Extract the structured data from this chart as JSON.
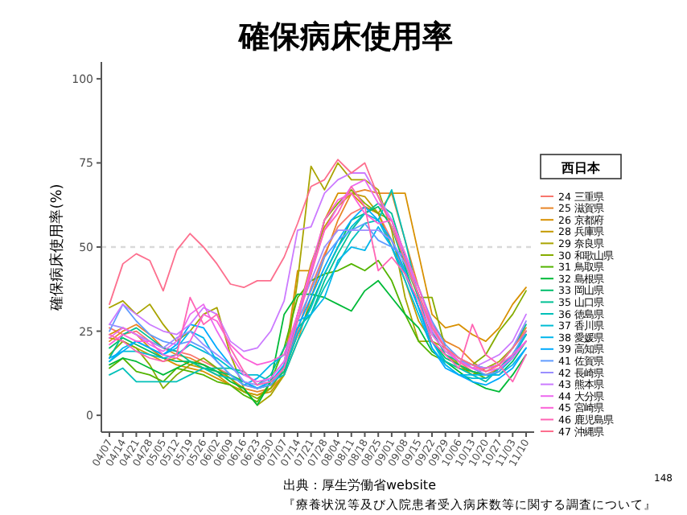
{
  "chart_data": {
    "type": "line",
    "title": "確保病床使用率",
    "ylabel": "確保病床使用率(%)",
    "legend_title": "西日本",
    "legend": "right",
    "grid": false,
    "categories": [
      "04/07",
      "04/14",
      "04/21",
      "04/28",
      "05/05",
      "05/12",
      "05/19",
      "05/26",
      "06/02",
      "06/09",
      "06/16",
      "06/23",
      "06/30",
      "07/07",
      "07/14",
      "07/21",
      "07/28",
      "08/04",
      "08/11",
      "08/18",
      "08/25",
      "09/01",
      "09/08",
      "09/15",
      "09/22",
      "09/29",
      "10/06",
      "10/13",
      "10/20",
      "10/27",
      "11/03",
      "11/10"
    ],
    "ylim": [
      -5,
      105
    ],
    "yticks": [
      0,
      25,
      50,
      75,
      100
    ],
    "ref_lines": [
      {
        "axis": "y",
        "value": 50,
        "color": "#d9d9d9",
        "line_style": "dashed"
      }
    ],
    "series": [
      {
        "name": "24 三重県",
        "color": "#F8766D",
        "values": [
          26,
          24,
          25,
          22,
          20,
          19,
          18,
          16,
          14,
          12,
          9,
          8,
          9,
          14,
          25,
          38,
          48,
          56,
          60,
          62,
          60,
          52,
          42,
          32,
          24,
          19,
          16,
          13,
          12,
          14,
          18,
          24
        ]
      },
      {
        "name": "25 滋賀県",
        "color": "#E88526",
        "values": [
          22,
          25,
          27,
          24,
          20,
          18,
          17,
          15,
          13,
          11,
          8,
          7,
          8,
          12,
          22,
          35,
          47,
          58,
          66,
          67,
          66,
          66,
          52,
          38,
          27,
          22,
          20,
          16,
          13,
          15,
          20,
          26
        ]
      },
      {
        "name": "26 京都府",
        "color": "#D89000",
        "values": [
          24,
          26,
          24,
          20,
          17,
          15,
          14,
          13,
          11,
          9,
          7,
          6,
          8,
          15,
          43,
          43,
          58,
          66,
          66,
          62,
          60,
          66,
          66,
          48,
          30,
          26,
          27,
          24,
          22,
          26,
          33,
          38
        ]
      },
      {
        "name": "28 兵庫県",
        "color": "#C49A00",
        "values": [
          23,
          22,
          20,
          18,
          16,
          17,
          15,
          14,
          12,
          9,
          7,
          6,
          7,
          12,
          30,
          45,
          56,
          62,
          66,
          65,
          60,
          50,
          40,
          28,
          22,
          18,
          15,
          13,
          12,
          13,
          18,
          24
        ]
      },
      {
        "name": "29 奈良県",
        "color": "#A9A400",
        "values": [
          32,
          34,
          30,
          33,
          27,
          22,
          25,
          30,
          32,
          18,
          8,
          3,
          6,
          12,
          40,
          74,
          67,
          75,
          70,
          70,
          67,
          55,
          35,
          22,
          22,
          20,
          15,
          12,
          14,
          16,
          20,
          25
        ]
      },
      {
        "name": "30 和歌山県",
        "color": "#86AC00",
        "values": [
          18,
          22,
          20,
          15,
          8,
          12,
          15,
          17,
          14,
          11,
          7,
          5,
          8,
          14,
          30,
          42,
          58,
          63,
          67,
          63,
          60,
          58,
          45,
          35,
          35,
          20,
          17,
          15,
          18,
          25,
          30,
          37
        ]
      },
      {
        "name": "31 鳥取県",
        "color": "#53B400",
        "values": [
          14,
          17,
          13,
          12,
          10,
          14,
          13,
          12,
          10,
          9,
          6,
          4,
          10,
          20,
          35,
          40,
          42,
          43,
          45,
          43,
          46,
          40,
          30,
          22,
          18,
          16,
          14,
          13,
          11,
          14,
          18,
          24
        ]
      },
      {
        "name": "32 島根県",
        "color": "#00BA38",
        "values": [
          15,
          17,
          16,
          14,
          12,
          14,
          16,
          15,
          13,
          10,
          8,
          3,
          10,
          30,
          36,
          36,
          35,
          33,
          31,
          37,
          40,
          35,
          30,
          26,
          19,
          16,
          13,
          10,
          8,
          7,
          12,
          18
        ]
      },
      {
        "name": "33 岡山県",
        "color": "#00BE6C",
        "values": [
          20,
          23,
          21,
          19,
          17,
          16,
          16,
          14,
          13,
          12,
          10,
          8,
          9,
          13,
          24,
          33,
          42,
          50,
          58,
          60,
          62,
          56,
          44,
          32,
          22,
          17,
          15,
          13,
          12,
          12,
          16,
          22
        ]
      },
      {
        "name": "35 山口県",
        "color": "#00C094",
        "values": [
          17,
          24,
          26,
          23,
          20,
          19,
          16,
          14,
          14,
          14,
          13,
          9,
          12,
          20,
          26,
          30,
          40,
          48,
          55,
          60,
          63,
          60,
          47,
          35,
          25,
          18,
          16,
          15,
          14,
          15,
          20,
          27
        ]
      },
      {
        "name": "36 徳島県",
        "color": "#00C0B8",
        "values": [
          12,
          14,
          10,
          10,
          10,
          10,
          12,
          14,
          12,
          11,
          10,
          8,
          10,
          12,
          22,
          30,
          38,
          45,
          52,
          57,
          58,
          67,
          52,
          35,
          22,
          16,
          14,
          12,
          10,
          14,
          18,
          24
        ]
      },
      {
        "name": "37 香川県",
        "color": "#00BDD4",
        "values": [
          16,
          19,
          19,
          18,
          17,
          18,
          21,
          19,
          17,
          14,
          12,
          12,
          10,
          14,
          24,
          32,
          42,
          50,
          56,
          60,
          58,
          50,
          40,
          30,
          20,
          15,
          12,
          11,
          11,
          13,
          17,
          24
        ]
      },
      {
        "name": "38 愛媛県",
        "color": "#00B6EB",
        "values": [
          16,
          20,
          22,
          20,
          18,
          20,
          25,
          23,
          16,
          12,
          9,
          11,
          15,
          18,
          28,
          30,
          35,
          46,
          50,
          49,
          56,
          50,
          42,
          32,
          22,
          15,
          12,
          12,
          12,
          12,
          15,
          20
        ]
      },
      {
        "name": "39 高知県",
        "color": "#00AAFE",
        "values": [
          17,
          19,
          22,
          20,
          18,
          21,
          27,
          26,
          20,
          15,
          10,
          8,
          10,
          15,
          26,
          35,
          44,
          52,
          58,
          62,
          58,
          52,
          43,
          32,
          20,
          14,
          12,
          10,
          9,
          11,
          14,
          20
        ]
      },
      {
        "name": "41 佐賀県",
        "color": "#619CFF",
        "values": [
          25,
          33,
          28,
          24,
          22,
          21,
          22,
          20,
          16,
          12,
          9,
          8,
          9,
          14,
          28,
          37,
          47,
          52,
          55,
          57,
          52,
          50,
          47,
          38,
          28,
          21,
          17,
          14,
          12,
          13,
          18,
          25
        ]
      },
      {
        "name": "42 長崎県",
        "color": "#9A8EFF",
        "values": [
          27,
          26,
          24,
          22,
          20,
          23,
          25,
          21,
          18,
          15,
          10,
          9,
          11,
          16,
          30,
          40,
          50,
          55,
          55,
          55,
          55,
          52,
          45,
          36,
          26,
          20,
          16,
          15,
          14,
          15,
          20,
          28
        ]
      },
      {
        "name": "43 熊本県",
        "color": "#CB7AFF",
        "values": [
          27,
          33,
          30,
          27,
          25,
          24,
          27,
          32,
          30,
          22,
          19,
          20,
          25,
          34,
          55,
          56,
          66,
          70,
          72,
          72,
          65,
          58,
          48,
          36,
          25,
          20,
          16,
          14,
          16,
          18,
          22,
          30
        ]
      },
      {
        "name": "44 大分県",
        "color": "#EC69EF",
        "values": [
          23,
          26,
          24,
          21,
          19,
          22,
          30,
          33,
          25,
          18,
          12,
          10,
          11,
          16,
          30,
          43,
          55,
          62,
          68,
          70,
          63,
          58,
          46,
          36,
          24,
          19,
          16,
          14,
          13,
          14,
          17,
          22
        ]
      },
      {
        "name": "45 宮崎県",
        "color": "#FB61D7",
        "values": [
          21,
          24,
          22,
          22,
          18,
          17,
          22,
          30,
          28,
          21,
          17,
          15,
          16,
          18,
          30,
          44,
          58,
          64,
          66,
          60,
          57,
          58,
          48,
          38,
          27,
          20,
          16,
          14,
          14,
          15,
          18,
          22
        ]
      },
      {
        "name": "46 鹿児島県",
        "color": "#FF65B4",
        "values": [
          24,
          22,
          19,
          17,
          16,
          18,
          35,
          27,
          30,
          20,
          13,
          9,
          10,
          14,
          28,
          42,
          55,
          60,
          68,
          62,
          43,
          47,
          42,
          34,
          22,
          18,
          14,
          27,
          18,
          15,
          10,
          18
        ]
      },
      {
        "name": "47 沖縄県",
        "color": "#FD6F8E",
        "values": [
          33,
          45,
          48,
          46,
          37,
          49,
          54,
          50,
          45,
          39,
          38,
          40,
          40,
          47,
          57,
          68,
          70,
          76,
          72,
          75,
          65,
          56,
          46,
          36,
          26,
          20,
          17,
          15,
          13,
          15,
          20,
          25
        ]
      }
    ],
    "annotations": [
      "出典：厚生労働省website",
      "『療養状況等及び入院患者受入病床数等に関する調査について』",
      "148"
    ]
  }
}
